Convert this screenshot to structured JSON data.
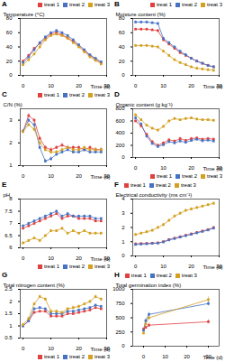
{
  "chart_data": [
    {
      "type": "line",
      "title": "A",
      "xlabel": "Time (d)",
      "ylabel": "Temperature (°C)",
      "x": [
        0,
        2,
        4,
        6,
        8,
        10,
        12,
        14,
        16,
        18,
        20,
        22,
        24,
        26,
        28
      ],
      "xlim": [
        -1,
        30
      ],
      "xticks": [
        0,
        10,
        20,
        30
      ],
      "ylim": [
        0,
        80
      ],
      "yticks": [
        0,
        20,
        40,
        60,
        80
      ],
      "legend": "upper right",
      "marker": "square",
      "grid": false,
      "series": [
        {
          "name": "treat 1",
          "color": "#e04040",
          "values": [
            20,
            28,
            38,
            45,
            52,
            58,
            60,
            57,
            53,
            48,
            42,
            35,
            28,
            23,
            18
          ],
          "error": [
            1.5,
            1.5,
            1.5,
            1.5,
            1.5,
            1.5,
            1.5,
            1.5,
            1.5,
            1.5,
            1.5,
            1.5,
            1.5,
            1.5,
            1.5
          ]
        },
        {
          "name": "treat 2",
          "color": "#4472c4",
          "values": [
            18,
            26,
            36,
            46,
            54,
            60,
            63,
            60,
            56,
            50,
            43,
            36,
            29,
            24,
            19
          ],
          "error": [
            1.5,
            1.5,
            1.5,
            1.5,
            1.5,
            1.5,
            1.5,
            1.5,
            1.5,
            1.5,
            1.5,
            1.5,
            1.5,
            1.5,
            1.5
          ]
        },
        {
          "name": "treat 3",
          "color": "#d4a020",
          "values": [
            15,
            22,
            30,
            40,
            50,
            56,
            58,
            56,
            52,
            46,
            40,
            33,
            26,
            21,
            16
          ],
          "error": [
            1.5,
            1.5,
            1.5,
            1.5,
            1.5,
            1.5,
            1.5,
            1.5,
            1.5,
            1.5,
            1.5,
            1.5,
            1.5,
            1.5,
            1.5
          ]
        }
      ]
    },
    {
      "type": "line",
      "title": "B",
      "xlabel": "Time (d)",
      "ylabel": "Moisture content (%)",
      "x": [
        0,
        2,
        4,
        6,
        8,
        10,
        12,
        14,
        16,
        18,
        20,
        22,
        24,
        26,
        28
      ],
      "xlim": [
        -1,
        30
      ],
      "xticks": [
        0,
        10,
        20,
        30
      ],
      "ylim": [
        0,
        80
      ],
      "yticks": [
        0,
        20,
        40,
        60,
        80
      ],
      "legend": "upper right",
      "marker": "square",
      "grid": false,
      "series": [
        {
          "name": "treat 1",
          "color": "#e04040",
          "values": [
            65,
            65,
            65,
            64,
            63,
            50,
            44,
            38,
            32,
            28,
            24,
            20,
            17,
            14,
            12
          ],
          "error": [
            1.5,
            1.5,
            1.5,
            1.5,
            1.5,
            1.5,
            1.5,
            1.5,
            1.5,
            1.5,
            1.5,
            1.5,
            1.5,
            1.5,
            1.5
          ]
        },
        {
          "name": "treat 2",
          "color": "#4472c4",
          "values": [
            75,
            75,
            75,
            74,
            73,
            52,
            46,
            40,
            34,
            29,
            24,
            20,
            17,
            14,
            12
          ],
          "error": [
            1.5,
            1.5,
            1.5,
            1.5,
            1.5,
            1.5,
            1.5,
            1.5,
            1.5,
            1.5,
            1.5,
            1.5,
            1.5,
            1.5,
            1.5
          ]
        },
        {
          "name": "treat 3",
          "color": "#d4a020",
          "values": [
            42,
            42,
            42,
            41,
            40,
            34,
            28,
            22,
            18,
            15,
            12,
            10,
            9,
            8,
            7
          ],
          "error": [
            1.5,
            1.5,
            1.5,
            1.5,
            1.5,
            1.5,
            1.5,
            1.5,
            1.5,
            1.5,
            1.5,
            1.5,
            1.5,
            1.5,
            1.5
          ]
        }
      ]
    },
    {
      "type": "line",
      "title": "C",
      "xlabel": "Time (d)",
      "ylabel": "C/N (%)",
      "x": [
        0,
        2,
        4,
        6,
        8,
        10,
        12,
        14,
        16,
        18,
        20,
        22,
        24,
        26,
        28
      ],
      "xlim": [
        -1,
        30
      ],
      "xticks": [
        0,
        10,
        20,
        30
      ],
      "ylim": [
        1,
        3.5
      ],
      "yticks": [
        1,
        2,
        3
      ],
      "legend": "upper right",
      "marker": "square",
      "grid": false,
      "series": [
        {
          "name": "treat 1",
          "color": "#e04040",
          "values": [
            2.5,
            3.2,
            3.0,
            2.2,
            1.8,
            1.7,
            1.8,
            1.9,
            1.8,
            1.8,
            1.8,
            1.7,
            1.8,
            1.7,
            1.7
          ],
          "error": [
            0.08,
            0.08,
            0.08,
            0.08,
            0.08,
            0.08,
            0.08,
            0.08,
            0.08,
            0.08,
            0.08,
            0.08,
            0.08,
            0.08,
            0.08
          ]
        },
        {
          "name": "treat 2",
          "color": "#4472c4",
          "values": [
            2.5,
            3.0,
            2.8,
            1.8,
            1.2,
            1.3,
            1.5,
            1.6,
            1.7,
            1.6,
            1.6,
            1.7,
            1.6,
            1.6,
            1.6
          ],
          "error": [
            0.08,
            0.08,
            0.08,
            0.08,
            0.08,
            0.08,
            0.08,
            0.08,
            0.08,
            0.08,
            0.08,
            0.08,
            0.08,
            0.08,
            0.08
          ]
        },
        {
          "name": "treat 3",
          "color": "#d4a020",
          "values": [
            2.5,
            2.8,
            2.6,
            2.0,
            1.7,
            1.6,
            1.6,
            1.7,
            1.8,
            1.7,
            1.7,
            1.8,
            1.7,
            1.7,
            1.7
          ],
          "error": [
            0.08,
            0.08,
            0.08,
            0.08,
            0.08,
            0.08,
            0.08,
            0.08,
            0.08,
            0.08,
            0.08,
            0.08,
            0.08,
            0.08,
            0.08
          ]
        }
      ]
    },
    {
      "type": "line",
      "title": "D",
      "xlabel": "Time (d)",
      "ylabel": "Organic content (g kg⁻¹)",
      "x": [
        0,
        2,
        4,
        6,
        8,
        10,
        12,
        14,
        16,
        18,
        20,
        22,
        24,
        26,
        28
      ],
      "xlim": [
        -1,
        30
      ],
      "xticks": [
        0,
        10,
        20,
        30
      ],
      "ylim": [
        0,
        800
      ],
      "yticks": [
        0,
        200,
        400,
        600,
        800
      ],
      "legend": "lower right",
      "marker": "square",
      "grid": false,
      "series": [
        {
          "name": "treat 1",
          "color": "#e04040",
          "values": [
            600,
            520,
            380,
            260,
            200,
            240,
            290,
            270,
            310,
            280,
            310,
            320,
            300,
            310,
            300
          ],
          "error": [
            20,
            20,
            20,
            20,
            20,
            20,
            20,
            20,
            20,
            20,
            20,
            20,
            20,
            20,
            20
          ]
        },
        {
          "name": "treat 2",
          "color": "#4472c4",
          "values": [
            650,
            550,
            350,
            230,
            180,
            210,
            260,
            240,
            270,
            250,
            280,
            300,
            275,
            285,
            270
          ],
          "error": [
            20,
            20,
            20,
            20,
            20,
            20,
            20,
            20,
            20,
            20,
            20,
            20,
            20,
            20,
            20
          ]
        },
        {
          "name": "treat 3",
          "color": "#d4a020",
          "values": [
            700,
            620,
            530,
            480,
            450,
            510,
            600,
            640,
            620,
            640,
            650,
            630,
            620,
            620,
            610
          ],
          "error": [
            20,
            20,
            20,
            20,
            20,
            20,
            20,
            20,
            20,
            20,
            20,
            20,
            20,
            20,
            20
          ]
        }
      ]
    },
    {
      "type": "line",
      "title": "E",
      "xlabel": "Time (d)",
      "ylabel": "pH",
      "x": [
        0,
        2,
        4,
        6,
        8,
        10,
        12,
        14,
        16,
        18,
        20,
        22,
        24,
        26,
        28
      ],
      "xlim": [
        -1,
        30
      ],
      "xticks": [
        0,
        10,
        20,
        30
      ],
      "ylim": [
        6,
        8
      ],
      "yticks": [
        6,
        6.5,
        7,
        7.5,
        8
      ],
      "legend": "lower right",
      "marker": "square",
      "grid": false,
      "series": [
        {
          "name": "treat 1",
          "color": "#e04040",
          "values": [
            6.8,
            6.9,
            7.0,
            7.1,
            7.2,
            7.3,
            7.4,
            7.2,
            7.3,
            7.3,
            7.2,
            7.2,
            7.2,
            7.1,
            7.1
          ],
          "error": [
            0.05,
            0.05,
            0.05,
            0.05,
            0.05,
            0.05,
            0.05,
            0.05,
            0.05,
            0.05,
            0.05,
            0.05,
            0.05,
            0.05,
            0.05
          ]
        },
        {
          "name": "treat 2",
          "color": "#4472c4",
          "values": [
            6.9,
            7.0,
            7.1,
            7.2,
            7.3,
            7.4,
            7.5,
            7.3,
            7.4,
            7.3,
            7.3,
            7.3,
            7.3,
            7.2,
            7.2
          ],
          "error": [
            0.05,
            0.05,
            0.05,
            0.05,
            0.05,
            0.05,
            0.05,
            0.05,
            0.05,
            0.05,
            0.05,
            0.05,
            0.05,
            0.05,
            0.05
          ]
        },
        {
          "name": "treat 3",
          "color": "#d4a020",
          "values": [
            6.2,
            6.3,
            6.4,
            6.3,
            6.5,
            6.7,
            6.7,
            6.8,
            6.6,
            6.7,
            6.6,
            6.7,
            6.6,
            6.6,
            6.6
          ],
          "error": [
            0.05,
            0.05,
            0.05,
            0.05,
            0.05,
            0.05,
            0.05,
            0.05,
            0.05,
            0.05,
            0.05,
            0.05,
            0.05,
            0.05,
            0.05
          ]
        }
      ]
    },
    {
      "type": "line",
      "title": "F",
      "xlabel": "Time (d)",
      "ylabel": "Electrical conductivity (ms cm⁻¹)",
      "x": [
        0,
        2,
        4,
        6,
        8,
        10,
        12,
        14,
        16,
        18,
        20,
        22,
        24,
        26,
        28
      ],
      "xlim": [
        -1,
        30
      ],
      "xticks": [
        0,
        10,
        20,
        30
      ],
      "ylim": [
        0,
        4
      ],
      "yticks": [
        0,
        1,
        2,
        3,
        4
      ],
      "legend": "upper left",
      "marker": "square",
      "grid": false,
      "series": [
        {
          "name": "treat 1",
          "color": "#e04040",
          "values": [
            0.85,
            0.87,
            0.88,
            0.9,
            0.92,
            1.0,
            1.15,
            1.25,
            1.35,
            1.45,
            1.55,
            1.65,
            1.75,
            1.85,
            2.0
          ],
          "error": [
            0.06,
            0.06,
            0.06,
            0.06,
            0.06,
            0.06,
            0.06,
            0.06,
            0.06,
            0.06,
            0.06,
            0.06,
            0.06,
            0.06,
            0.06
          ]
        },
        {
          "name": "treat 2",
          "color": "#4472c4",
          "values": [
            0.8,
            0.83,
            0.85,
            0.88,
            0.9,
            0.98,
            1.12,
            1.22,
            1.32,
            1.42,
            1.52,
            1.62,
            1.72,
            1.82,
            1.95
          ],
          "error": [
            0.06,
            0.06,
            0.06,
            0.06,
            0.06,
            0.06,
            0.06,
            0.06,
            0.06,
            0.06,
            0.06,
            0.06,
            0.06,
            0.06,
            0.06
          ]
        },
        {
          "name": "treat 3",
          "color": "#d4a020",
          "values": [
            1.5,
            1.6,
            1.7,
            1.8,
            2.0,
            2.2,
            2.5,
            2.8,
            3.0,
            3.2,
            3.3,
            3.4,
            3.5,
            3.6,
            3.7
          ],
          "error": [
            0.1,
            0.1,
            0.1,
            0.1,
            0.1,
            0.1,
            0.1,
            0.1,
            0.1,
            0.1,
            0.1,
            0.1,
            0.1,
            0.1,
            0.1
          ]
        }
      ]
    },
    {
      "type": "line",
      "title": "G",
      "xlabel": "Time (d)",
      "ylabel": "Total nitrogen content (%)",
      "x": [
        0,
        2,
        4,
        6,
        8,
        10,
        12,
        14,
        16,
        18,
        20,
        22,
        24,
        26,
        28
      ],
      "xlim": [
        -1,
        30
      ],
      "xticks": [
        0,
        10,
        20,
        30
      ],
      "ylim": [
        0.5,
        2.5
      ],
      "yticks": [
        0.5,
        1,
        1.5,
        2,
        2.5
      ],
      "legend": "lower right",
      "marker": "square",
      "grid": false,
      "series": [
        {
          "name": "treat 1",
          "color": "#e04040",
          "values": [
            1.0,
            1.2,
            1.55,
            1.6,
            1.6,
            1.4,
            1.4,
            1.4,
            1.5,
            1.5,
            1.55,
            1.6,
            1.65,
            1.75,
            1.7
          ],
          "error": [
            0.04,
            0.04,
            0.04,
            0.04,
            0.04,
            0.04,
            0.04,
            0.04,
            0.04,
            0.04,
            0.04,
            0.04,
            0.04,
            0.04,
            0.04
          ]
        },
        {
          "name": "treat 2",
          "color": "#4472c4",
          "values": [
            1.0,
            1.2,
            1.7,
            1.75,
            1.7,
            1.5,
            1.5,
            1.5,
            1.6,
            1.6,
            1.65,
            1.7,
            1.75,
            1.85,
            1.8
          ],
          "error": [
            0.04,
            0.04,
            0.04,
            0.04,
            0.04,
            0.04,
            0.04,
            0.04,
            0.04,
            0.04,
            0.04,
            0.04,
            0.04,
            0.04,
            0.04
          ]
        },
        {
          "name": "treat 3",
          "color": "#d4a020",
          "values": [
            1.05,
            1.3,
            1.9,
            2.2,
            2.1,
            1.6,
            1.6,
            1.55,
            1.7,
            1.75,
            1.8,
            1.9,
            2.0,
            2.2,
            2.1
          ],
          "error": [
            0.06,
            0.06,
            0.06,
            0.06,
            0.06,
            0.06,
            0.06,
            0.06,
            0.06,
            0.06,
            0.06,
            0.06,
            0.06,
            0.06,
            0.06
          ]
        }
      ]
    },
    {
      "type": "line",
      "title": "H",
      "xlabel": "Time (d)",
      "ylabel": "Total germination index (%)",
      "x": [
        0,
        1,
        2.5,
        30
      ],
      "xlim": [
        -5,
        35
      ],
      "xticks": [
        0,
        10,
        20,
        30
      ],
      "ylim": [
        0,
        1000
      ],
      "yticks": [
        0,
        250,
        500,
        750,
        1000
      ],
      "legend": "upper left",
      "marker": "square",
      "grid": false,
      "series": [
        {
          "name": "treat 1",
          "color": "#e04040",
          "values": [
            300,
            330,
            370,
            430
          ],
          "error": [
            25,
            20,
            30,
            35
          ]
        },
        {
          "name": "treat 2",
          "color": "#4472c4",
          "values": [
            280,
            450,
            560,
            750
          ],
          "error": [
            25,
            30,
            35,
            40
          ]
        },
        {
          "name": "treat 3",
          "color": "#d4a020",
          "values": [
            230,
            390,
            500,
            820
          ],
          "error": [
            20,
            30,
            35,
            45
          ]
        }
      ]
    }
  ]
}
